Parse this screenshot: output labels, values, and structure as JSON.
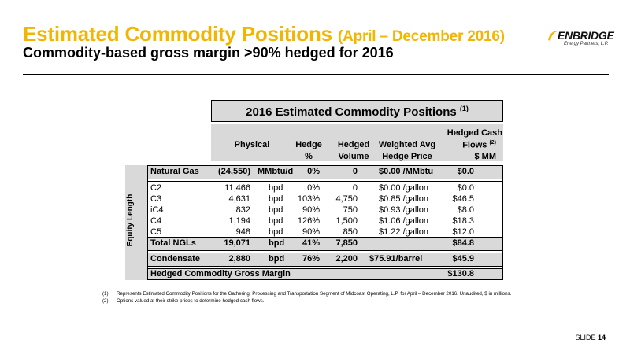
{
  "header": {
    "title": "Estimated Commodity Positions",
    "title_period": "(April – December 2016)",
    "subtitle": "Commodity-based gross margin >90% hedged for 2016"
  },
  "logo": {
    "brand": "ENBRIDGE",
    "tagline": "Energy Partners, L.P."
  },
  "table": {
    "title": "2016 Estimated Commodity Positions",
    "title_note": "(1)",
    "side_label": "Equity Length",
    "headers": {
      "physical": "Physical",
      "hedge_1": "Hedge",
      "hedge_2": "%",
      "hedged_1": "Hedged",
      "hedged_2": "Volume",
      "wavg_1": "Weighted Avg",
      "wavg_2": "Hedge Price",
      "cash_1": "Hedged Cash",
      "cash_2": "Flows",
      "cash_note": "(2)",
      "cash_3": "$ MM"
    },
    "rows": [
      {
        "name": "Natural Gas",
        "vol": "(24,550)",
        "unit": "MMbtu/d",
        "pct": "0%",
        "hvol": "0",
        "price": "$0.00 /MMbtu",
        "cash": "$0.0"
      },
      {
        "name": "C2",
        "vol": "11,466",
        "unit": "bpd",
        "pct": "0%",
        "hvol": "0",
        "price": "$0.00 /gallon",
        "cash": "$0.0"
      },
      {
        "name": "C3",
        "vol": "4,631",
        "unit": "bpd",
        "pct": "103%",
        "hvol": "4,750",
        "price": "$0.85 /gallon",
        "cash": "$46.5"
      },
      {
        "name": "iC4",
        "vol": "832",
        "unit": "bpd",
        "pct": "90%",
        "hvol": "750",
        "price": "$0.93 /gallon",
        "cash": "$8.0"
      },
      {
        "name": "C4",
        "vol": "1,194",
        "unit": "bpd",
        "pct": "126%",
        "hvol": "1,500",
        "price": "$1.06 /gallon",
        "cash": "$18.3"
      },
      {
        "name": "C5",
        "vol": "948",
        "unit": "bpd",
        "pct": "90%",
        "hvol": "850",
        "price": "$1.22 /gallon",
        "cash": "$12.0"
      },
      {
        "name": "Total NGLs",
        "vol": "19,071",
        "unit": "bpd",
        "pct": "41%",
        "hvol": "7,850",
        "price": "",
        "cash": "$84.8"
      },
      {
        "name": "Condensate",
        "vol": "2,880",
        "unit": "bpd",
        "pct": "76%",
        "hvol": "2,200",
        "price": "$75.91/barrel",
        "cash": "$45.9"
      }
    ],
    "total": {
      "name": "Hedged Commodity Gross Margin",
      "cash": "$130.8"
    }
  },
  "footnotes": [
    {
      "num": "(1)",
      "text": "Represents Estimated Commodity Positions for the Gathering, Processing and Transportation Segment of Midcoast Operating, L.P. for April – December 2016. Unaudited, $ in millions."
    },
    {
      "num": "(2)",
      "text": "Options valued at their strike prices to determine hedged cash flows."
    }
  ],
  "slide": {
    "label": "SLIDE",
    "number": "14"
  }
}
